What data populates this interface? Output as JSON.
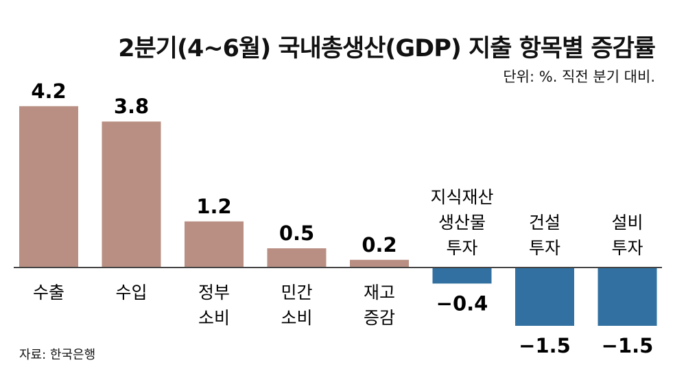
{
  "chart_data": {
    "type": "bar",
    "title": "2분기(4~6월) 국내총생산(GDP) 지출 항목별 증감률",
    "subtitle": "단위: %. 직전 분기 대비.",
    "source": "자료: 한국은행",
    "categories": [
      [
        "수출"
      ],
      [
        "수입"
      ],
      [
        "정부",
        "소비"
      ],
      [
        "민간",
        "소비"
      ],
      [
        "재고",
        "증감"
      ],
      [
        "지식재산",
        "생산물",
        "투자"
      ],
      [
        "건설",
        "투자"
      ],
      [
        "설비",
        "투자"
      ]
    ],
    "values": [
      4.2,
      3.8,
      1.2,
      0.5,
      0.2,
      -0.4,
      -1.5,
      -1.5
    ],
    "value_labels": [
      "4.2",
      "3.8",
      "1.2",
      "0.5",
      "0.2",
      "−0.4",
      "−1.5",
      "−1.5"
    ],
    "colors": {
      "positive": "#b88f82",
      "negative": "#3170a0",
      "axis": "#444444"
    },
    "xlabel": "",
    "ylabel": "",
    "grid": false
  }
}
